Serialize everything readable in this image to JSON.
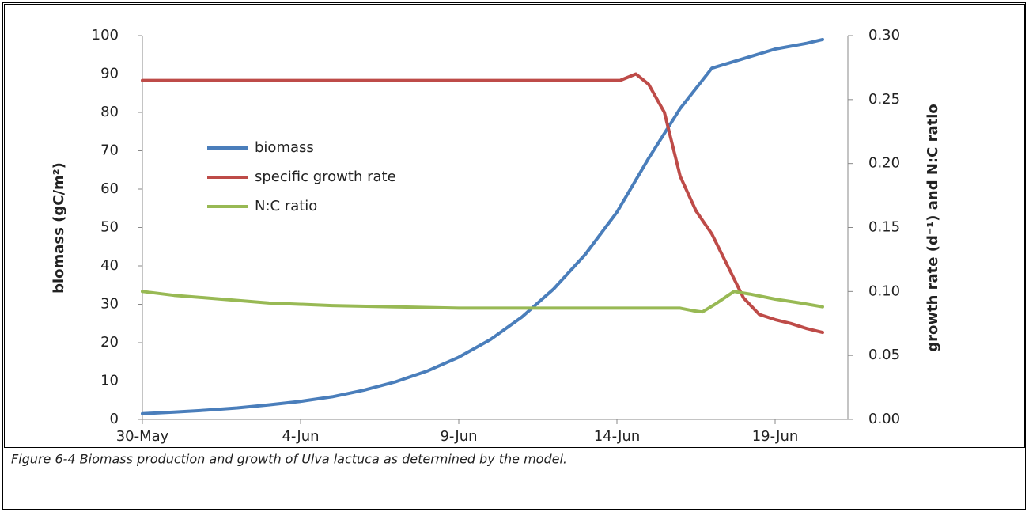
{
  "chart_data": {
    "type": "line",
    "caption": "Figure 6-4 Biomass production and growth of Ulva lactuca as determined by the model.",
    "ylabel": "biomass (gC/m²)",
    "y2label": "growth rate (d⁻¹) and N:C ratio",
    "xlim": [
      0,
      22.3
    ],
    "xticks": [
      {
        "value": 0,
        "label": "30-May"
      },
      {
        "value": 5,
        "label": "4-Jun"
      },
      {
        "value": 10,
        "label": "9-Jun"
      },
      {
        "value": 15,
        "label": "14-Jun"
      },
      {
        "value": 20,
        "label": "19-Jun"
      }
    ],
    "ylim": [
      0,
      100
    ],
    "yticks": [
      0,
      10,
      20,
      30,
      40,
      50,
      60,
      70,
      80,
      90,
      100
    ],
    "y2lim": [
      0,
      0.3
    ],
    "y2ticks": [
      {
        "value": 0,
        "label": "0.00"
      },
      {
        "value": 0.05,
        "label": "0.05"
      },
      {
        "value": 0.1,
        "label": "0.10"
      },
      {
        "value": 0.15,
        "label": "0.15"
      },
      {
        "value": 0.2,
        "label": "0.20"
      },
      {
        "value": 0.25,
        "label": "0.25"
      },
      {
        "value": 0.3,
        "label": "0.30"
      }
    ],
    "legend": "upper left",
    "series": [
      {
        "name": "biomass",
        "color": "#4a7ebb",
        "x": [
          0,
          1,
          2,
          3,
          4,
          5,
          6,
          7,
          8,
          9,
          10,
          11,
          12,
          13,
          14,
          15,
          16,
          17,
          18,
          19,
          20,
          21,
          21.5
        ],
        "values": [
          1.5,
          1.9,
          2.4,
          3.0,
          3.8,
          4.7,
          5.9,
          7.6,
          9.8,
          12.6,
          16.2,
          20.8,
          26.7,
          34,
          43,
          54,
          68,
          81,
          91.5,
          94,
          96.5,
          98,
          99
        ]
      },
      {
        "name": "specific growth rate",
        "color": "#be4b48",
        "axis": "y2",
        "x": [
          0,
          5,
          10,
          15.1,
          15.6,
          16.0,
          16.5,
          17.0,
          17.5,
          18.0,
          18.5,
          19.0,
          19.5,
          20.0,
          20.5,
          21.0,
          21.5
        ],
        "values": [
          0.265,
          0.265,
          0.265,
          0.265,
          0.27,
          0.262,
          0.24,
          0.19,
          0.163,
          0.145,
          0.12,
          0.095,
          0.082,
          0.078,
          0.075,
          0.071,
          0.068
        ]
      },
      {
        "name": "N:C ratio",
        "color": "#98b954",
        "axis": "y2",
        "x": [
          0,
          1,
          2,
          3,
          4,
          6,
          8,
          10,
          12,
          14,
          16,
          17,
          17.4,
          17.7,
          18.1,
          18.7,
          19.2,
          20,
          20.8,
          21.5
        ],
        "values": [
          0.1,
          0.097,
          0.095,
          0.093,
          0.091,
          0.089,
          0.088,
          0.087,
          0.087,
          0.087,
          0.087,
          0.087,
          0.085,
          0.084,
          0.09,
          0.1,
          0.098,
          0.094,
          0.091,
          0.088
        ]
      }
    ]
  }
}
